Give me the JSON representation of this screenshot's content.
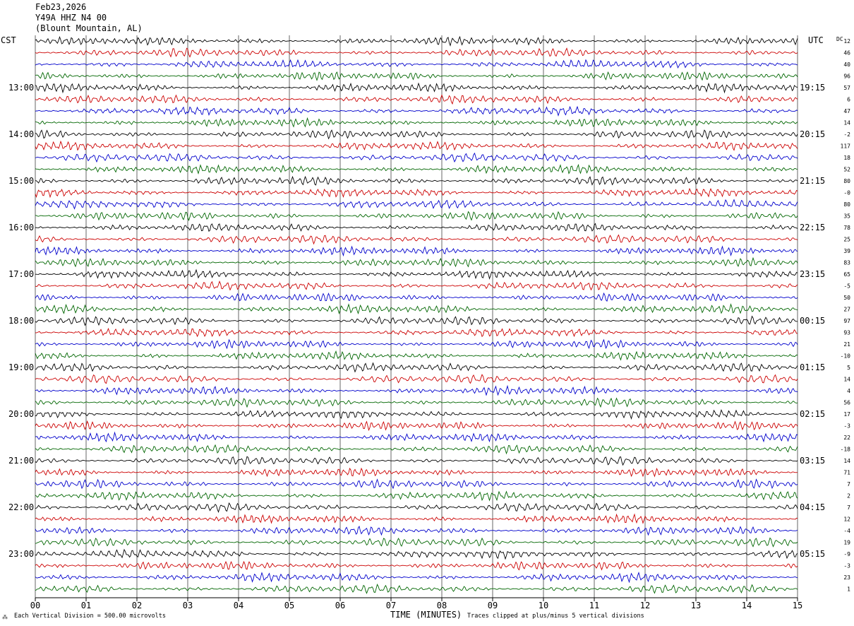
{
  "header": {
    "date": "Feb23,2026",
    "station": "Y49A HHZ N4 00",
    "location": "(Blount Mountain, AL)"
  },
  "left_axis_label": "CST",
  "right_axis_label": "UTC",
  "dc_label": "DC",
  "footer": {
    "scale": "Each Vertical Division =  500.00 microvolts",
    "xlabel": "TIME (MINUTES)",
    "clip_note": "Traces clipped at plus/minus 5 vertical divisions"
  },
  "colors": {
    "trace_cycle": [
      "#000000",
      "#cc0000",
      "#0000cc",
      "#006600"
    ],
    "grid": "#000000"
  },
  "chart_data": {
    "type": "line",
    "title": "Y49A HHZ N4 00",
    "xlabel": "TIME (MINUTES)",
    "xlim": [
      0,
      15
    ],
    "x_ticks": [
      "00",
      "01",
      "02",
      "03",
      "04",
      "05",
      "06",
      "07",
      "08",
      "09",
      "10",
      "11",
      "12",
      "13",
      "14",
      "15"
    ],
    "rows_per_hour": 4,
    "row_count": 48,
    "left_hour_labels": [
      "13:00",
      "14:00",
      "15:00",
      "16:00",
      "17:00",
      "18:00",
      "19:00",
      "20:00",
      "21:00",
      "22:00",
      "23:00"
    ],
    "right_hour_labels": [
      "19:15",
      "20:15",
      "21:15",
      "22:15",
      "23:15",
      "00:15",
      "01:15",
      "02:15",
      "03:15",
      "04:15",
      "05:15"
    ],
    "dc_offsets": [
      "12",
      "46",
      "40",
      "96",
      "57",
      "6",
      "47",
      "14",
      "-2",
      "117",
      "18",
      "52",
      "80",
      "-0",
      "80",
      "35",
      "78",
      "25",
      "39",
      "83",
      "65",
      "-5",
      "50",
      "27",
      "97",
      "93",
      "21",
      "-10",
      "5",
      "14",
      "4",
      "56",
      "17",
      "-3",
      "22",
      "-18",
      "14",
      "71",
      "7",
      "2",
      "7",
      "12",
      "-4",
      "19",
      "-9",
      "-3",
      "23",
      "1"
    ],
    "grid": true
  }
}
